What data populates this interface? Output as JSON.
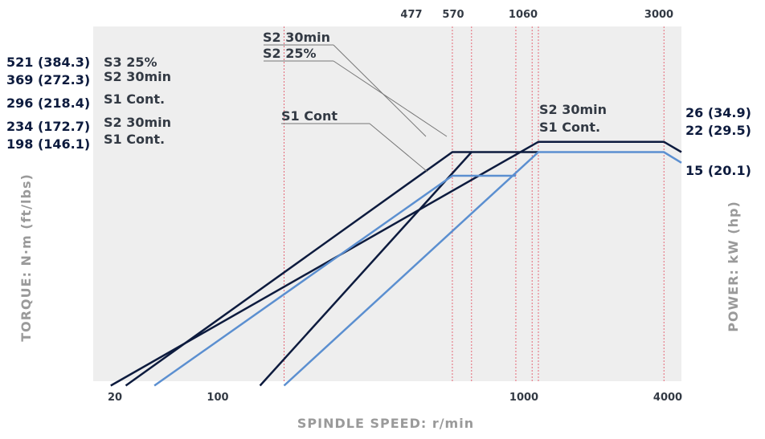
{
  "chart_data": {
    "type": "line",
    "xlabel": "SPINDLE SPEED: r/min",
    "ylabel_left": "TORQUE: N·m (ft/lbs)",
    "ylabel_right": "POWER: kW (hp)",
    "x_scale": "log",
    "xlim": [
      17,
      4000
    ],
    "x_ticks_bottom": [
      {
        "value": 20,
        "label": "20"
      },
      {
        "value": 100,
        "label": "100"
      },
      {
        "value": 1000,
        "label": "1000"
      },
      {
        "value": 4000,
        "label": "4000"
      }
    ],
    "x_ticks_top": [
      {
        "value": 477,
        "label": "477"
      },
      {
        "value": 570,
        "label": "570"
      },
      {
        "value": 1060,
        "label": "1060"
      },
      {
        "value": 3000,
        "label": "3000"
      }
    ],
    "reference_speeds": [
      100,
      477,
      570,
      860,
      1000,
      1060,
      3400
    ],
    "torque_left_labels": [
      {
        "text": "521 (384.3)",
        "value": 521
      },
      {
        "text": "369 (272.3)",
        "value": 369
      },
      {
        "text": "296 (218.4)",
        "value": 296
      },
      {
        "text": "234 (172.7)",
        "value": 234
      },
      {
        "text": "198 (146.1)",
        "value": 198
      }
    ],
    "power_right_labels": [
      {
        "text": "26 (34.9)",
        "value": 26
      },
      {
        "text": "22 (29.5)",
        "value": 22
      },
      {
        "text": "15 (20.1)",
        "value": 15
      }
    ],
    "torque_series": [
      {
        "name": "S3 25%",
        "value": 521,
        "color": "#0d1b3e",
        "x": [
          17,
          477,
          3400,
          4000
        ],
        "y": [
          521,
          521,
          71,
          55
        ]
      },
      {
        "name": "S2 30min",
        "value": 369,
        "color": "#0d1b3e",
        "x": [
          17,
          570
        ],
        "y": [
          369,
          369
        ]
      },
      {
        "name": "S1 Cont.",
        "value": 296,
        "color": "#5b8fd0",
        "x": [
          17,
          477,
          3400,
          4000
        ],
        "y": [
          296,
          296,
          60,
          46
        ]
      },
      {
        "name": "S2 30min",
        "value": 234,
        "color": "#0d1b3e",
        "x": [
          17,
          1060
        ],
        "y": [
          234,
          234
        ]
      },
      {
        "name": "S1 Cont.",
        "value": 198,
        "color": "#5b8fd0",
        "x": [
          17,
          1060
        ],
        "y": [
          198,
          198
        ]
      }
    ],
    "power_series": [
      {
        "name": "S2 30min",
        "value": 26,
        "color": "#0d1b3e",
        "x": [
          20,
          1060,
          3400,
          4000
        ],
        "y": [
          0.5,
          26,
          26,
          22
        ]
      },
      {
        "color": "#0d1b3e",
        "x": [
          23,
          477,
          570
        ],
        "y": [
          0.5,
          22,
          22
        ]
      },
      {
        "color": "#0d1b3e",
        "x": [
          80,
          570,
          1060
        ],
        "y": [
          0.5,
          22,
          22
        ]
      },
      {
        "name": "S1 Cont.",
        "value": 22,
        "color": "#5b8fd0",
        "x": [
          100,
          1060,
          3400,
          4000
        ],
        "y": [
          0.5,
          22,
          22,
          18.5
        ]
      },
      {
        "name": "S1 Cont",
        "value": 15,
        "color": "#5b8fd0",
        "x": [
          30,
          477,
          860
        ],
        "y": [
          0.5,
          15,
          15
        ]
      }
    ],
    "annotations": [
      {
        "text": "S2 30min"
      },
      {
        "text": "S2 25%"
      },
      {
        "text": "S1 Cont"
      },
      {
        "text": "S2 30min"
      },
      {
        "text": "S1 Cont."
      }
    ],
    "grid": false,
    "legend": "inline"
  },
  "colors": {
    "dark": "#0d1b3e",
    "light": "#5b8fd0",
    "plot_bg": "#eeeeee",
    "ref_line": "#e3475a",
    "axis_text": "#9a9a9a"
  }
}
